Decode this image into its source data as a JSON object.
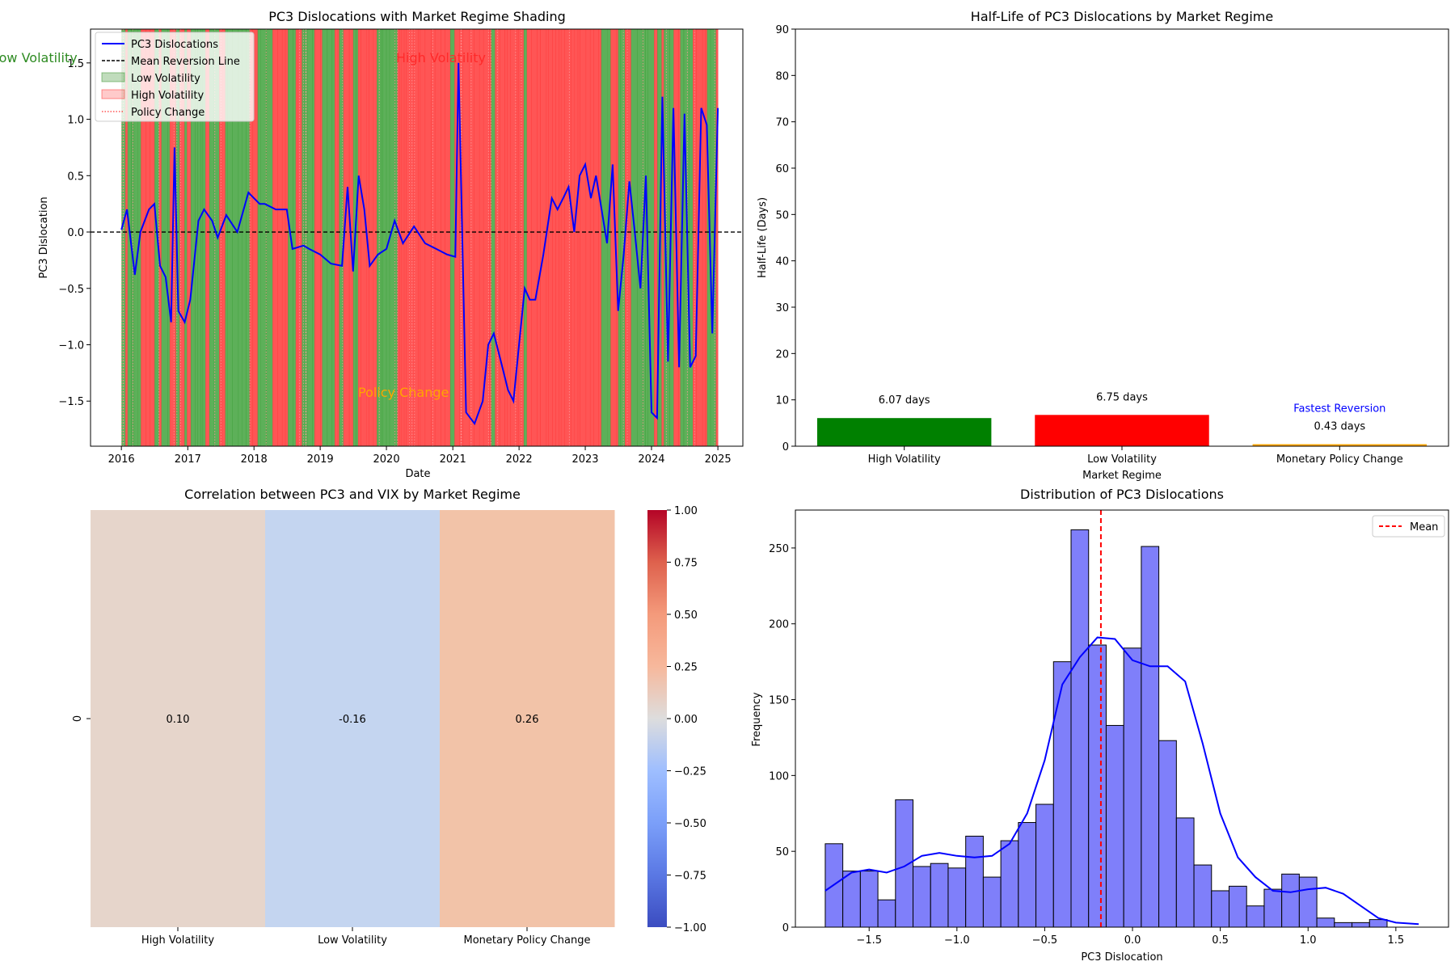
{
  "chart_data": [
    {
      "type": "line",
      "title": "PC3 Dislocations with Market Regime Shading",
      "xlabel": "Date",
      "ylabel": "PC3 Dislocation",
      "xlim": [
        "2015-07-15",
        "2025-06-01"
      ],
      "ylim": [
        -1.9,
        1.8
      ],
      "x_ticks": [
        "2016",
        "2017",
        "2018",
        "2019",
        "2020",
        "2021",
        "2022",
        "2023",
        "2024",
        "2025"
      ],
      "y_ticks": [
        -1.5,
        -1.0,
        -0.5,
        0.0,
        0.5,
        1.0,
        1.5
      ],
      "y_tick_labels": [
        "−1.5",
        "−1.0",
        "−0.5",
        "0.0",
        "0.5",
        "1.0",
        "1.5"
      ],
      "legend": [
        "PC3 Dislocations",
        "Mean Reversion Line",
        "Low Volatility",
        "High Volatility",
        "Policy Change"
      ],
      "legend_position": "upper-left",
      "annotations": [
        "Low Volatility",
        "High Volatility",
        "Policy Change"
      ],
      "mean_reversion_level": 0.0,
      "colors": {
        "line": "#0000ff",
        "low_vol": "#2e8b22",
        "high_vol": "#ff2a2a",
        "policy": "#ffa500"
      },
      "series": [
        {
          "name": "PC3 Dislocations",
          "x": [
            "2016-01-01",
            "2016-02-01",
            "2016-03-15",
            "2016-04-15",
            "2016-06-01",
            "2016-07-01",
            "2016-08-01",
            "2016-09-01",
            "2016-10-01",
            "2016-10-20",
            "2016-11-10",
            "2016-12-15",
            "2017-01-15",
            "2017-03-01",
            "2017-04-01",
            "2017-05-15",
            "2017-06-15",
            "2017-08-01",
            "2017-10-01",
            "2017-12-01",
            "2018-01-01",
            "2018-02-01",
            "2018-03-01",
            "2018-05-01",
            "2018-07-01",
            "2018-08-01",
            "2018-10-01",
            "2018-11-01",
            "2019-01-01",
            "2019-03-01",
            "2019-05-01",
            "2019-06-01",
            "2019-07-01",
            "2019-08-01",
            "2019-09-01",
            "2019-10-01",
            "2019-11-15",
            "2020-01-01",
            "2020-02-15",
            "2020-04-01",
            "2020-06-01",
            "2020-08-01",
            "2020-10-01",
            "2020-12-01",
            "2021-01-15",
            "2021-02-01",
            "2021-03-15",
            "2021-05-01",
            "2021-06-15",
            "2021-07-15",
            "2021-08-15",
            "2021-10-01",
            "2021-11-01",
            "2021-12-01",
            "2022-01-01",
            "2022-02-01",
            "2022-03-01",
            "2022-04-01",
            "2022-05-15",
            "2022-07-01",
            "2022-08-01",
            "2022-09-01",
            "2022-10-01",
            "2022-11-01",
            "2022-12-01",
            "2023-01-01",
            "2023-02-01",
            "2023-03-01",
            "2023-04-01",
            "2023-05-01",
            "2023-06-01",
            "2023-07-01",
            "2023-08-01",
            "2023-09-01",
            "2023-10-01",
            "2023-11-01",
            "2023-12-01",
            "2024-01-01",
            "2024-02-01",
            "2024-03-01",
            "2024-04-01",
            "2024-05-01",
            "2024-06-01",
            "2024-07-01",
            "2024-08-01",
            "2024-09-01",
            "2024-10-01",
            "2024-11-01",
            "2024-12-01",
            "2025-01-01"
          ],
          "values": [
            0.02,
            0.2,
            -0.38,
            0.0,
            0.2,
            0.25,
            -0.3,
            -0.4,
            -0.8,
            0.75,
            -0.7,
            -0.8,
            -0.6,
            0.1,
            0.2,
            0.1,
            -0.05,
            0.15,
            0.0,
            0.35,
            0.3,
            0.25,
            0.25,
            0.2,
            0.2,
            -0.15,
            -0.12,
            -0.15,
            -0.2,
            -0.28,
            -0.3,
            0.4,
            -0.35,
            0.5,
            0.2,
            -0.3,
            -0.2,
            -0.15,
            0.1,
            -0.1,
            0.05,
            -0.1,
            -0.15,
            -0.2,
            -0.22,
            1.5,
            -1.6,
            -1.7,
            -1.5,
            -1.0,
            -0.9,
            -1.2,
            -1.4,
            -1.5,
            -1.0,
            -0.5,
            -0.6,
            -0.6,
            -0.2,
            0.3,
            0.2,
            0.3,
            0.4,
            0.0,
            0.5,
            0.6,
            0.3,
            0.5,
            0.2,
            -0.1,
            0.6,
            -0.7,
            -0.2,
            0.45,
            0.0,
            -0.5,
            0.5,
            -1.6,
            -1.65,
            1.2,
            -1.15,
            1.1,
            -1.2,
            1.05,
            -1.2,
            -1.1,
            1.1,
            0.95,
            -0.9,
            1.1
          ]
        }
      ]
    },
    {
      "type": "bar",
      "title": "Half-Life of PC3 Dislocations by Market Regime",
      "xlabel": "Market Regime",
      "ylabel": "Half-Life (Days)",
      "categories": [
        "High Volatility",
        "Low Volatility",
        "Monetary Policy Change"
      ],
      "values": [
        6.07,
        6.75,
        0.43
      ],
      "data_labels": [
        "6.07 days",
        "6.75 days",
        "0.43 days"
      ],
      "colors": [
        "#008000",
        "#ff0000",
        "#ffa500"
      ],
      "annotation": "Fastest Reversion",
      "ylim": [
        0,
        90
      ],
      "y_ticks": [
        0,
        10,
        20,
        30,
        40,
        50,
        60,
        70,
        80,
        90
      ]
    },
    {
      "type": "heatmap",
      "title": "Correlation between PC3 and VIX by Market Regime",
      "rows": [
        "0"
      ],
      "columns": [
        "High Volatility",
        "Low Volatility",
        "Monetary Policy Change"
      ],
      "values": [
        [
          0.1,
          -0.16,
          0.26
        ]
      ],
      "cell_labels": [
        "0.10",
        "-0.16",
        "0.26"
      ],
      "colormap": "coolwarm",
      "vmin": -1.0,
      "vmax": 1.0,
      "colorbar_ticks": [
        1.0,
        0.75,
        0.5,
        0.25,
        0.0,
        -0.25,
        -0.5,
        -0.75,
        -1.0
      ],
      "colorbar_tick_labels": [
        "1.00",
        "0.75",
        "0.50",
        "0.25",
        "0.00",
        "−0.25",
        "−0.50",
        "−0.75",
        "−1.00"
      ],
      "cell_colors": [
        "#e6d5cb",
        "#c4d5f0",
        "#f2c3a8"
      ]
    },
    {
      "type": "bar",
      "subtype": "histogram",
      "title": "Distribution of PC3 Dislocations",
      "xlabel": "PC3 Dislocation",
      "ylabel": "Frequency",
      "bin_start": -1.75,
      "bin_width": 0.1,
      "values": [
        55,
        37,
        37,
        18,
        84,
        40,
        42,
        39,
        60,
        33,
        57,
        69,
        81,
        175,
        262,
        186,
        133,
        184,
        251,
        123,
        72,
        41,
        24,
        27,
        14,
        25,
        35,
        33,
        6,
        3,
        3,
        5
      ],
      "mean": -0.18,
      "kde": {
        "x": [
          -1.75,
          -1.6,
          -1.5,
          -1.4,
          -1.3,
          -1.2,
          -1.1,
          -1.0,
          -0.9,
          -0.8,
          -0.7,
          -0.6,
          -0.5,
          -0.4,
          -0.3,
          -0.2,
          -0.1,
          0.0,
          0.1,
          0.2,
          0.3,
          0.4,
          0.5,
          0.6,
          0.7,
          0.8,
          0.9,
          1.0,
          1.1,
          1.2,
          1.3,
          1.4,
          1.5,
          1.63
        ],
        "y": [
          24,
          36,
          38,
          36,
          40,
          47,
          49,
          47,
          46,
          47,
          55,
          75,
          110,
          160,
          178,
          191,
          190,
          176,
          172,
          172,
          162,
          121,
          75,
          46,
          33,
          24,
          23,
          25,
          26,
          22,
          14,
          6,
          3,
          2
        ]
      },
      "xlim": [
        -1.92,
        1.8
      ],
      "ylim": [
        0,
        275
      ],
      "x_ticks": [
        -1.5,
        -1.0,
        -0.5,
        0.0,
        0.5,
        1.0,
        1.5
      ],
      "x_tick_labels": [
        "−1.5",
        "−1.0",
        "−0.5",
        "0.0",
        "0.5",
        "1.0",
        "1.5"
      ],
      "y_ticks": [
        0,
        50,
        100,
        150,
        200,
        250
      ],
      "legend": [
        "Mean"
      ],
      "legend_position": "upper-right",
      "colors": {
        "bar": "#7f7ffa",
        "kde": "#0000ff",
        "mean": "#ff0000"
      }
    }
  ]
}
